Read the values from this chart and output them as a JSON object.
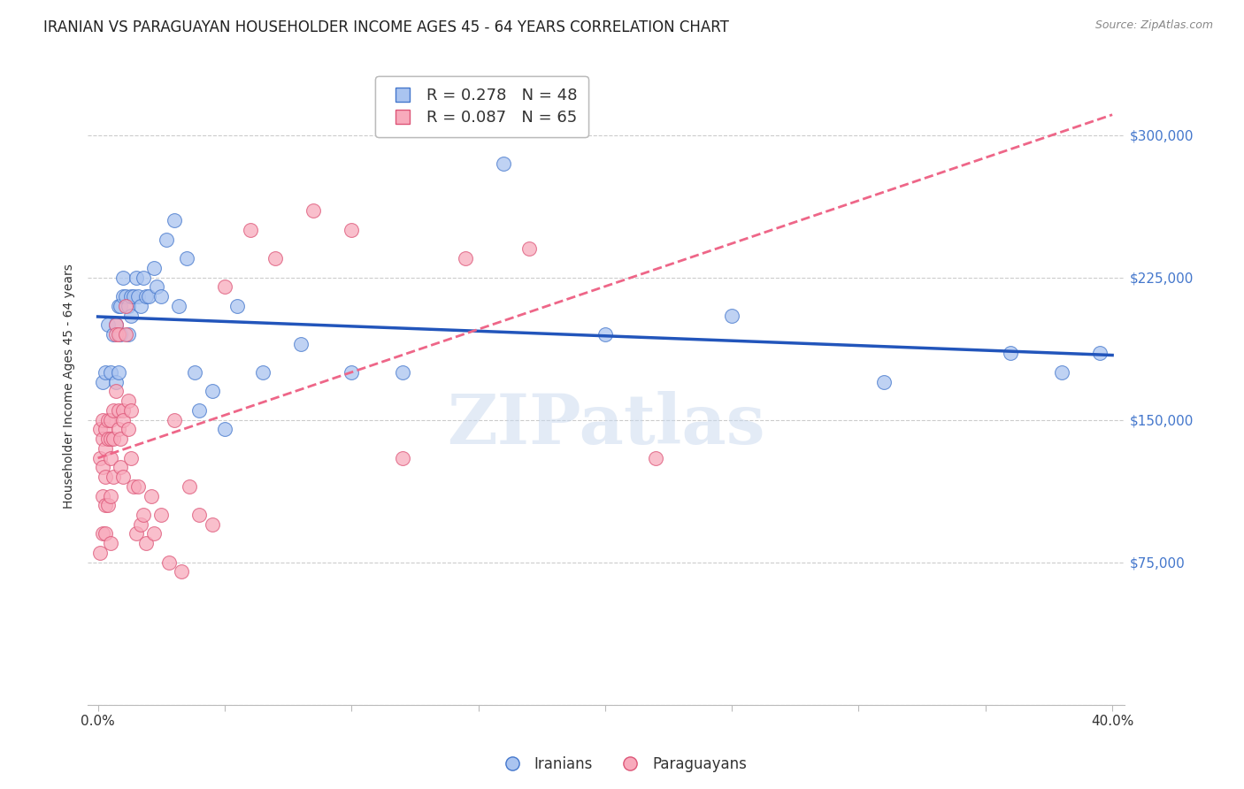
{
  "title": "IRANIAN VS PARAGUAYAN HOUSEHOLDER INCOME AGES 45 - 64 YEARS CORRELATION CHART",
  "source": "Source: ZipAtlas.com",
  "ylabel": "Householder Income Ages 45 - 64 years",
  "background_color": "#ffffff",
  "grid_color": "#cccccc",
  "title_fontsize": 12,
  "axis_label_fontsize": 10,
  "tick_fontsize": 11,
  "watermark_text": "ZIPatlas",
  "watermark_color": "#c8d8ee",
  "iranian_fill": "#aac4f0",
  "iranian_edge": "#4477cc",
  "paraguayan_fill": "#f8aabc",
  "paraguayan_edge": "#dd5577",
  "iranian_line_color": "#2255bb",
  "paraguayan_line_color": "#ee6688",
  "xlim": [
    -0.004,
    0.405
  ],
  "ylim": [
    0,
    335000
  ],
  "yticks": [
    0,
    75000,
    150000,
    225000,
    300000
  ],
  "ytick_labels": [
    "",
    "$75,000",
    "$150,000",
    "$225,000",
    "$300,000"
  ],
  "xtick_positions": [
    0.0,
    0.05,
    0.1,
    0.15,
    0.2,
    0.25,
    0.3,
    0.35,
    0.4
  ],
  "xtick_show": [
    true,
    false,
    false,
    false,
    false,
    false,
    false,
    false,
    true
  ],
  "xtick_label_0": "0.0%",
  "xtick_label_last": "40.0%",
  "legend1_label1": "R = 0.278   N = 48",
  "legend1_label2": "R = 0.087   N = 65",
  "legend2_label1": "Iranians",
  "legend2_label2": "Paraguayans",
  "iranians_x": [
    0.002,
    0.003,
    0.004,
    0.005,
    0.006,
    0.007,
    0.007,
    0.008,
    0.008,
    0.009,
    0.009,
    0.01,
    0.01,
    0.011,
    0.012,
    0.012,
    0.013,
    0.013,
    0.014,
    0.015,
    0.016,
    0.017,
    0.018,
    0.019,
    0.02,
    0.022,
    0.023,
    0.025,
    0.027,
    0.03,
    0.032,
    0.035,
    0.038,
    0.04,
    0.045,
    0.05,
    0.055,
    0.065,
    0.08,
    0.1,
    0.12,
    0.16,
    0.2,
    0.25,
    0.31,
    0.36,
    0.38,
    0.395
  ],
  "iranians_y": [
    170000,
    175000,
    200000,
    175000,
    195000,
    170000,
    200000,
    175000,
    210000,
    195000,
    210000,
    215000,
    225000,
    215000,
    195000,
    210000,
    205000,
    215000,
    215000,
    225000,
    215000,
    210000,
    225000,
    215000,
    215000,
    230000,
    220000,
    215000,
    245000,
    255000,
    210000,
    235000,
    175000,
    155000,
    165000,
    145000,
    210000,
    175000,
    190000,
    175000,
    175000,
    285000,
    195000,
    205000,
    170000,
    185000,
    175000,
    185000
  ],
  "paraguayans_x": [
    0.001,
    0.001,
    0.001,
    0.002,
    0.002,
    0.002,
    0.002,
    0.002,
    0.003,
    0.003,
    0.003,
    0.003,
    0.003,
    0.004,
    0.004,
    0.004,
    0.005,
    0.005,
    0.005,
    0.005,
    0.005,
    0.006,
    0.006,
    0.006,
    0.007,
    0.007,
    0.007,
    0.008,
    0.008,
    0.008,
    0.009,
    0.009,
    0.01,
    0.01,
    0.01,
    0.011,
    0.011,
    0.012,
    0.012,
    0.013,
    0.013,
    0.014,
    0.015,
    0.016,
    0.017,
    0.018,
    0.019,
    0.021,
    0.022,
    0.025,
    0.028,
    0.03,
    0.033,
    0.036,
    0.04,
    0.045,
    0.05,
    0.06,
    0.07,
    0.085,
    0.1,
    0.12,
    0.145,
    0.17,
    0.22
  ],
  "paraguayans_y": [
    145000,
    130000,
    80000,
    150000,
    140000,
    125000,
    110000,
    90000,
    145000,
    135000,
    120000,
    105000,
    90000,
    150000,
    140000,
    105000,
    150000,
    140000,
    130000,
    110000,
    85000,
    155000,
    140000,
    120000,
    200000,
    195000,
    165000,
    195000,
    155000,
    145000,
    140000,
    125000,
    155000,
    150000,
    120000,
    210000,
    195000,
    160000,
    145000,
    155000,
    130000,
    115000,
    90000,
    115000,
    95000,
    100000,
    85000,
    110000,
    90000,
    100000,
    75000,
    150000,
    70000,
    115000,
    100000,
    95000,
    220000,
    250000,
    235000,
    260000,
    250000,
    130000,
    235000,
    240000,
    130000
  ]
}
